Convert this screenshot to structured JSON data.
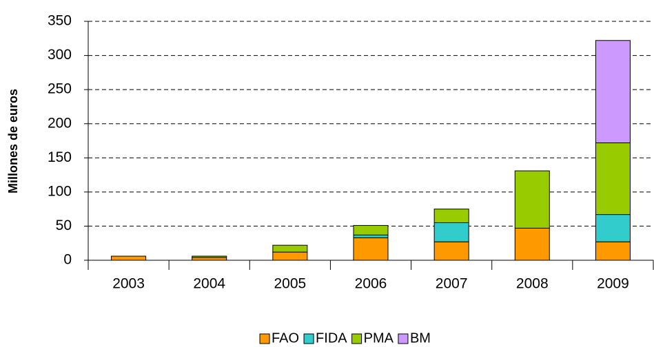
{
  "chart_data": {
    "type": "stacked_bar",
    "y_axis_label": "Millones de euros",
    "categories": [
      "2003",
      "2004",
      "2005",
      "2006",
      "2007",
      "2008",
      "2009"
    ],
    "series": [
      {
        "name": "FAO",
        "color": "#ff9900",
        "values": [
          6,
          4,
          12,
          33,
          27,
          47,
          27
        ]
      },
      {
        "name": "FIDA",
        "color": "#33cccc",
        "values": [
          0,
          0,
          0,
          4,
          28,
          0,
          40
        ]
      },
      {
        "name": "PMA",
        "color": "#99cc00",
        "values": [
          0,
          2,
          10,
          14,
          20,
          84,
          105
        ]
      },
      {
        "name": "BM",
        "color": "#cc99ff",
        "values": [
          0,
          0,
          0,
          0,
          0,
          0,
          150
        ]
      }
    ],
    "ylim": [
      0,
      350
    ],
    "yticks": [
      0,
      50,
      100,
      150,
      200,
      250,
      300,
      350
    ],
    "grid": true,
    "legend": "bottom"
  }
}
